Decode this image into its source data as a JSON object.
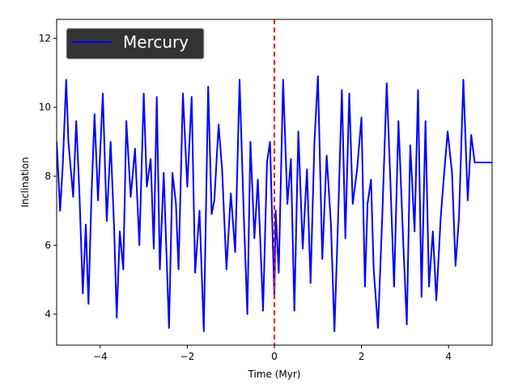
{
  "chart_data": {
    "type": "line",
    "xlabel": "Time (Myr)",
    "ylabel": "Inclination",
    "xlim": [
      -5,
      5
    ],
    "ylim": [
      3.1,
      12.55
    ],
    "xticks": [
      -4,
      -2,
      0,
      2,
      4
    ],
    "xtick_labels": [
      "−4",
      "−2",
      "0",
      "2",
      "4"
    ],
    "yticks": [
      4,
      6,
      8,
      10,
      12
    ],
    "ytick_labels": [
      "4",
      "6",
      "8",
      "10",
      "12"
    ],
    "grid": false,
    "legend": {
      "placement": "top-left",
      "background": "#333333",
      "text_color": "#ffffff"
    },
    "series": [
      {
        "name": "Mercury",
        "color": "#0000ff",
        "x": [
          -5.0,
          -4.92,
          -4.86,
          -4.78,
          -4.73,
          -4.62,
          -4.55,
          -4.48,
          -4.4,
          -4.33,
          -4.27,
          -4.2,
          -4.13,
          -4.05,
          -3.94,
          -3.85,
          -3.76,
          -3.68,
          -3.62,
          -3.55,
          -3.47,
          -3.4,
          -3.3,
          -3.2,
          -3.1,
          -3.0,
          -2.93,
          -2.84,
          -2.77,
          -2.7,
          -2.63,
          -2.54,
          -2.42,
          -2.34,
          -2.26,
          -2.2,
          -2.1,
          -2.0,
          -1.9,
          -1.82,
          -1.72,
          -1.62,
          -1.52,
          -1.44,
          -1.38,
          -1.28,
          -1.2,
          -1.1,
          -1.0,
          -0.9,
          -0.8,
          -0.7,
          -0.62,
          -0.55,
          -0.46,
          -0.38,
          -0.26,
          -0.17,
          -0.1,
          -0.03,
          0.0,
          0.03,
          0.1,
          0.2,
          0.3,
          0.38,
          0.46,
          0.55,
          0.65,
          0.75,
          0.83,
          0.92,
          1.0,
          1.1,
          1.2,
          1.3,
          1.38,
          1.46,
          1.55,
          1.63,
          1.72,
          1.8,
          1.9,
          2.0,
          2.08,
          2.14,
          2.22,
          2.28,
          2.38,
          2.48,
          2.58,
          2.66,
          2.75,
          2.85,
          2.96,
          3.04,
          3.12,
          3.22,
          3.3,
          3.38,
          3.47,
          3.55,
          3.64,
          3.72,
          3.82,
          3.9,
          3.98,
          4.08,
          4.16,
          4.24,
          4.34,
          4.44,
          4.52,
          4.6,
          4.7,
          4.8,
          4.88,
          4.96,
          5.0
        ],
        "y": [
          9.0,
          7.0,
          8.3,
          10.8,
          9.0,
          7.4,
          9.6,
          7.6,
          4.6,
          6.6,
          4.3,
          7.4,
          9.8,
          7.3,
          10.4,
          6.7,
          9.0,
          6.5,
          3.9,
          6.4,
          5.3,
          9.6,
          7.4,
          8.8,
          6.0,
          10.4,
          7.7,
          8.5,
          5.9,
          10.3,
          5.3,
          8.1,
          3.6,
          8.1,
          7.2,
          5.3,
          10.4,
          7.7,
          10.3,
          5.2,
          7.0,
          3.5,
          10.6,
          6.9,
          7.3,
          9.5,
          8.2,
          5.3,
          7.5,
          5.8,
          10.8,
          6.8,
          4.0,
          9.0,
          6.2,
          7.9,
          4.1,
          8.4,
          9.0,
          5.8,
          4.5,
          7.0,
          5.2,
          10.8,
          7.2,
          8.5,
          4.1,
          9.3,
          5.9,
          8.2,
          4.9,
          9.0,
          10.9,
          5.6,
          8.6,
          6.6,
          3.5,
          6.6,
          10.5,
          6.2,
          10.4,
          7.2,
          8.2,
          9.7,
          4.8,
          7.2,
          7.9,
          5.3,
          3.6,
          6.9,
          10.7,
          8.0,
          4.8,
          9.6,
          6.1,
          3.7,
          8.9,
          6.4,
          10.5,
          4.5,
          9.6,
          4.8,
          6.4,
          4.4,
          6.8,
          8.1,
          9.3,
          8.1,
          5.4,
          6.8,
          10.8,
          7.3,
          9.2,
          8.4,
          8.4,
          8.4,
          8.4,
          8.4,
          8.4
        ]
      }
    ],
    "annotations": [
      {
        "type": "vline",
        "x": 0,
        "color": "#ff0000",
        "style": "dashed"
      }
    ]
  }
}
